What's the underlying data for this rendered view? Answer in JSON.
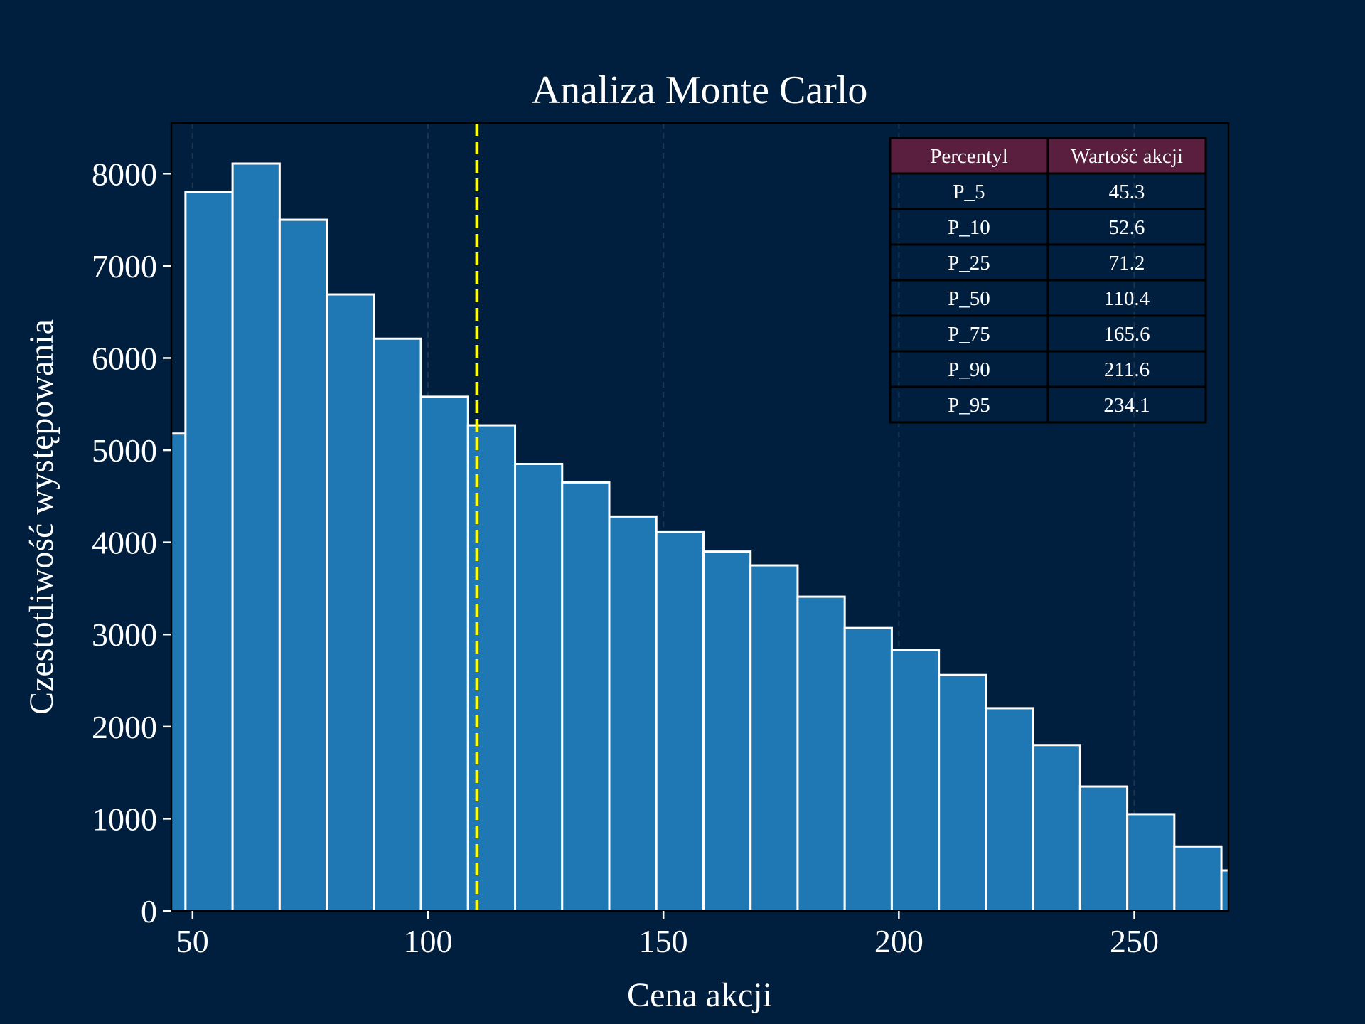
{
  "chart_data": {
    "type": "bar",
    "title": "Analiza Monte Carlo",
    "xlabel": "Cena akcji",
    "ylabel": "Czestotliwość występowania",
    "xlim": [
      45.5,
      270
    ],
    "ylim": [
      0,
      8550
    ],
    "x_ticks": [
      50,
      100,
      150,
      200,
      250
    ],
    "y_ticks": [
      0,
      1000,
      2000,
      3000,
      4000,
      5000,
      6000,
      7000,
      8000
    ],
    "grid": "x-dashed",
    "bin_width": 10,
    "bins": [
      {
        "start": 38.5,
        "end": 48.5,
        "value": 5180
      },
      {
        "start": 48.5,
        "end": 58.5,
        "value": 7800
      },
      {
        "start": 58.5,
        "end": 68.5,
        "value": 8110
      },
      {
        "start": 68.5,
        "end": 78.5,
        "value": 7500
      },
      {
        "start": 78.5,
        "end": 88.5,
        "value": 6690
      },
      {
        "start": 88.5,
        "end": 98.5,
        "value": 6210
      },
      {
        "start": 98.5,
        "end": 108.5,
        "value": 5580
      },
      {
        "start": 108.5,
        "end": 118.5,
        "value": 5270
      },
      {
        "start": 118.5,
        "end": 128.5,
        "value": 4850
      },
      {
        "start": 128.5,
        "end": 138.5,
        "value": 4650
      },
      {
        "start": 138.5,
        "end": 148.5,
        "value": 4280
      },
      {
        "start": 148.5,
        "end": 158.5,
        "value": 4110
      },
      {
        "start": 158.5,
        "end": 168.5,
        "value": 3900
      },
      {
        "start": 168.5,
        "end": 178.5,
        "value": 3750
      },
      {
        "start": 178.5,
        "end": 188.5,
        "value": 3410
      },
      {
        "start": 188.5,
        "end": 198.5,
        "value": 3070
      },
      {
        "start": 198.5,
        "end": 208.5,
        "value": 2830
      },
      {
        "start": 208.5,
        "end": 218.5,
        "value": 2560
      },
      {
        "start": 218.5,
        "end": 228.5,
        "value": 2200
      },
      {
        "start": 228.5,
        "end": 238.5,
        "value": 1800
      },
      {
        "start": 238.5,
        "end": 248.5,
        "value": 1350
      },
      {
        "start": 248.5,
        "end": 258.5,
        "value": 1050
      },
      {
        "start": 258.5,
        "end": 268.5,
        "value": 700
      },
      {
        "start": 268.5,
        "end": 278.5,
        "value": 440
      }
    ],
    "reference_line": {
      "x": 110.4,
      "color": "#ffff00",
      "style": "dashed"
    },
    "colors": {
      "background": "#001f3f",
      "bar_fill": "#1f77b4",
      "bar_edge": "#ffffff",
      "grid": "#34495e",
      "table_header": "#5a1f3f",
      "table_border": "#000000",
      "text": "#ffffff"
    },
    "table": {
      "position": "top-right",
      "headers": [
        "Percentyl",
        "Wartość akcji"
      ],
      "rows": [
        [
          "P_5",
          "45.3"
        ],
        [
          "P_10",
          "52.6"
        ],
        [
          "P_25",
          "71.2"
        ],
        [
          "P_50",
          "110.4"
        ],
        [
          "P_75",
          "165.6"
        ],
        [
          "P_90",
          "211.6"
        ],
        [
          "P_95",
          "234.1"
        ]
      ]
    }
  }
}
